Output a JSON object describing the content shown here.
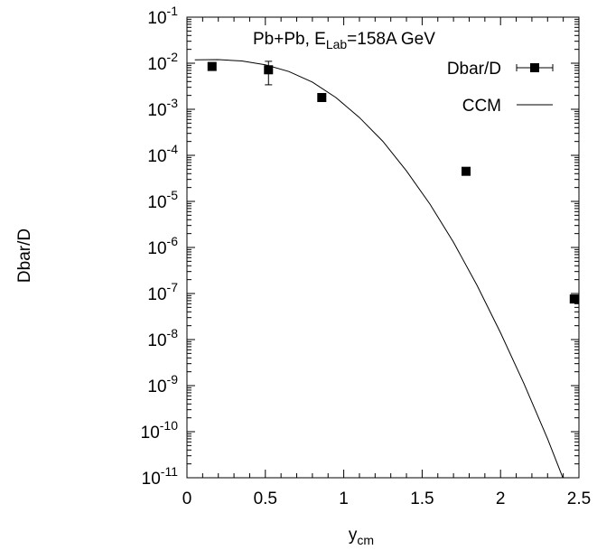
{
  "chart_data": {
    "type": "scatter",
    "title_parts": {
      "prefix": "Pb+Pb, E",
      "sub": "Lab",
      "suffix": "=158A GeV"
    },
    "xlabel": {
      "base": "y",
      "sub": "cm"
    },
    "ylabel": "Dbar/D",
    "xlim": [
      0,
      2.5
    ],
    "ylim_exp": [
      -11,
      -1
    ],
    "y_scale": "log",
    "x_ticks": [
      {
        "value": 0,
        "label": "0"
      },
      {
        "value": 0.5,
        "label": "0.5"
      },
      {
        "value": 1,
        "label": "1"
      },
      {
        "value": 1.5,
        "label": "1.5"
      },
      {
        "value": 2,
        "label": "2"
      },
      {
        "value": 2.5,
        "label": "2.5"
      }
    ],
    "y_ticks": [
      {
        "exp": -1,
        "base": "10",
        "sup": "-1"
      },
      {
        "exp": -2,
        "base": "10",
        "sup": "-2"
      },
      {
        "exp": -3,
        "base": "10",
        "sup": "-3"
      },
      {
        "exp": -4,
        "base": "10",
        "sup": "-4"
      },
      {
        "exp": -5,
        "base": "10",
        "sup": "-5"
      },
      {
        "exp": -6,
        "base": "10",
        "sup": "-6"
      },
      {
        "exp": -7,
        "base": "10",
        "sup": "-7"
      },
      {
        "exp": -8,
        "base": "10",
        "sup": "-8"
      },
      {
        "exp": -9,
        "base": "10",
        "sup": "-9"
      },
      {
        "exp": -10,
        "base": "10",
        "sup": "-10"
      },
      {
        "exp": -11,
        "base": "10",
        "sup": "-11"
      }
    ],
    "series": [
      {
        "name": "Dbar/D",
        "kind": "points",
        "marker": "filled-square",
        "color": "#000000",
        "points": [
          {
            "x": 0.16,
            "y": 0.0085
          },
          {
            "x": 0.52,
            "y": 0.0072,
            "y_low": 0.0034,
            "y_high": 0.011
          },
          {
            "x": 0.86,
            "y": 0.0018
          },
          {
            "x": 1.78,
            "y": 4.5e-05
          },
          {
            "x": 2.47,
            "y": 7.6e-08
          }
        ]
      },
      {
        "name": "CCM",
        "kind": "line",
        "color": "#000000",
        "points": [
          {
            "x": 0.05,
            "y": 0.0118
          },
          {
            "x": 0.2,
            "y": 0.012
          },
          {
            "x": 0.35,
            "y": 0.0112
          },
          {
            "x": 0.5,
            "y": 0.0092
          },
          {
            "x": 0.65,
            "y": 0.0066
          },
          {
            "x": 0.8,
            "y": 0.0039
          },
          {
            "x": 0.95,
            "y": 0.0018
          },
          {
            "x": 1.1,
            "y": 0.00066
          },
          {
            "x": 1.25,
            "y": 0.0002
          },
          {
            "x": 1.4,
            "y": 4.6e-05
          },
          {
            "x": 1.55,
            "y": 8.7e-06
          },
          {
            "x": 1.7,
            "y": 1.3e-06
          },
          {
            "x": 1.85,
            "y": 1.5e-07
          },
          {
            "x": 2.0,
            "y": 1.4e-08
          },
          {
            "x": 2.15,
            "y": 1.1e-09
          },
          {
            "x": 2.3,
            "y": 7e-11
          },
          {
            "x": 2.45,
            "y": 3.5e-12
          }
        ]
      }
    ],
    "legend": {
      "position": "top-right",
      "entries": [
        "Dbar/D",
        "CCM"
      ]
    },
    "grid": false
  }
}
